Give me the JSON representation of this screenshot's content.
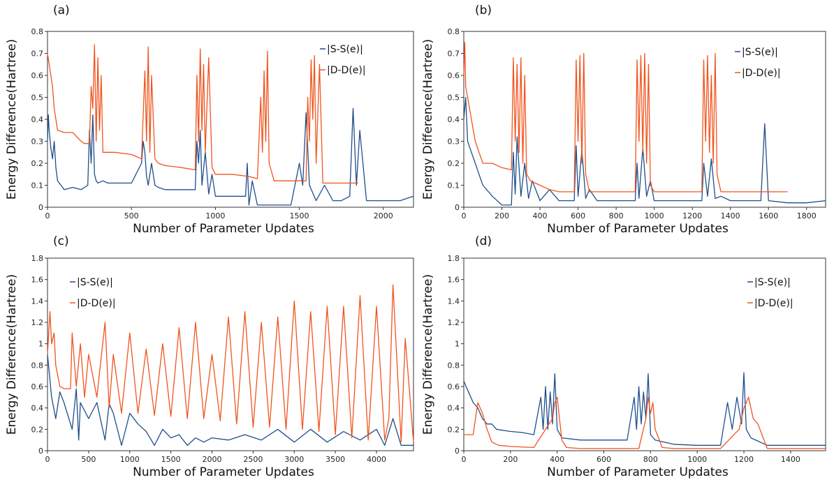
{
  "colors": {
    "s": "#1f4e8c",
    "d": "#f0541e"
  },
  "chart_data": [
    {
      "panel": "(a)",
      "type": "line",
      "xlabel": "Number of Parameter Updates",
      "ylabel": "Energy Difference(Hartree)",
      "xlim": [
        0,
        2180
      ],
      "ylim": [
        0,
        0.8
      ],
      "xticks": [
        0,
        500,
        1000,
        1500,
        2000
      ],
      "xtick_labels": [
        "0",
        "500",
        "1000",
        "1500",
        "2000"
      ],
      "yticks": [
        0,
        0.1,
        0.2,
        0.3,
        0.4,
        0.5,
        0.6,
        0.7,
        0.8
      ],
      "ytick_labels": [
        "0",
        "0.1",
        "0.2",
        "0.3",
        "0.4",
        "0.5",
        "0.6",
        "0.7",
        "0.8"
      ],
      "legend": "top-right",
      "series": [
        {
          "name": "|S-S(e)|",
          "color": "s",
          "x": [
            0,
            5,
            10,
            20,
            30,
            40,
            50,
            60,
            80,
            100,
            150,
            200,
            240,
            250,
            260,
            270,
            280,
            290,
            300,
            330,
            360,
            400,
            500,
            560,
            570,
            580,
            590,
            600,
            620,
            640,
            660,
            700,
            800,
            880,
            890,
            900,
            910,
            920,
            940,
            960,
            980,
            1000,
            1100,
            1180,
            1190,
            1200,
            1220,
            1250,
            1300,
            1400,
            1450,
            1500,
            1520,
            1540,
            1560,
            1600,
            1650,
            1700,
            1750,
            1800,
            1820,
            1840,
            1860,
            1900,
            2000,
            2100,
            2180
          ],
          "y": [
            0.3,
            0.42,
            0.35,
            0.27,
            0.22,
            0.3,
            0.18,
            0.12,
            0.1,
            0.08,
            0.09,
            0.08,
            0.1,
            0.35,
            0.2,
            0.42,
            0.15,
            0.12,
            0.11,
            0.12,
            0.11,
            0.11,
            0.11,
            0.2,
            0.3,
            0.25,
            0.14,
            0.1,
            0.2,
            0.1,
            0.09,
            0.08,
            0.08,
            0.08,
            0.3,
            0.2,
            0.35,
            0.1,
            0.25,
            0.06,
            0.15,
            0.05,
            0.05,
            0.05,
            0.2,
            0.01,
            0.12,
            0.01,
            0.01,
            0.01,
            0.01,
            0.2,
            0.1,
            0.43,
            0.1,
            0.03,
            0.1,
            0.03,
            0.03,
            0.05,
            0.45,
            0.1,
            0.35,
            0.03,
            0.03,
            0.03,
            0.05
          ]
        },
        {
          "name": "|D-D(e)|",
          "color": "d",
          "x": [
            0,
            10,
            20,
            30,
            40,
            60,
            100,
            150,
            200,
            220,
            250,
            260,
            270,
            280,
            290,
            300,
            310,
            320,
            330,
            350,
            400,
            500,
            560,
            580,
            590,
            600,
            610,
            620,
            640,
            660,
            700,
            800,
            880,
            890,
            900,
            910,
            920,
            930,
            940,
            960,
            980,
            1000,
            1100,
            1200,
            1250,
            1270,
            1280,
            1290,
            1300,
            1310,
            1320,
            1350,
            1400,
            1500,
            1540,
            1550,
            1560,
            1570,
            1580,
            1590,
            1600,
            1620,
            1640,
            1700,
            1800,
            1850
          ],
          "y": [
            0.7,
            0.65,
            0.6,
            0.55,
            0.45,
            0.35,
            0.34,
            0.34,
            0.3,
            0.29,
            0.29,
            0.55,
            0.45,
            0.74,
            0.3,
            0.68,
            0.35,
            0.6,
            0.25,
            0.25,
            0.25,
            0.24,
            0.22,
            0.62,
            0.3,
            0.73,
            0.25,
            0.6,
            0.22,
            0.2,
            0.19,
            0.18,
            0.17,
            0.6,
            0.3,
            0.72,
            0.35,
            0.65,
            0.25,
            0.68,
            0.18,
            0.15,
            0.15,
            0.14,
            0.13,
            0.5,
            0.25,
            0.62,
            0.3,
            0.71,
            0.2,
            0.12,
            0.12,
            0.12,
            0.12,
            0.5,
            0.3,
            0.67,
            0.4,
            0.69,
            0.2,
            0.65,
            0.11,
            0.11,
            0.11,
            0.11
          ]
        }
      ]
    },
    {
      "panel": "(b)",
      "type": "line",
      "xlabel": "Number of Parameter Updates",
      "ylabel": "Energy Difference(Hartree)",
      "xlim": [
        0,
        1900
      ],
      "ylim": [
        0,
        0.8
      ],
      "xticks": [
        0,
        200,
        400,
        600,
        800,
        1000,
        1200,
        1400,
        1600,
        1800
      ],
      "xtick_labels": [
        "0",
        "200",
        "400",
        "600",
        "800",
        "1000",
        "1200",
        "1400",
        "1600",
        "1800"
      ],
      "yticks": [
        0,
        0.1,
        0.2,
        0.3,
        0.4,
        0.5,
        0.6,
        0.7,
        0.8
      ],
      "ytick_labels": [
        "0",
        "0.1",
        "0.2",
        "0.3",
        "0.4",
        "0.5",
        "0.6",
        "0.7",
        "0.8"
      ],
      "legend": "top-right",
      "series": [
        {
          "name": "|S-S(e)|",
          "color": "s",
          "x": [
            0,
            10,
            20,
            40,
            60,
            80,
            100,
            150,
            200,
            250,
            260,
            270,
            280,
            300,
            320,
            340,
            360,
            400,
            450,
            500,
            580,
            590,
            600,
            620,
            640,
            660,
            700,
            800,
            900,
            910,
            920,
            940,
            960,
            980,
            1000,
            1100,
            1200,
            1250,
            1260,
            1280,
            1300,
            1320,
            1350,
            1400,
            1500,
            1560,
            1580,
            1600,
            1700,
            1800,
            1900
          ],
          "y": [
            0.4,
            0.5,
            0.3,
            0.25,
            0.2,
            0.15,
            0.1,
            0.05,
            0.01,
            0.01,
            0.25,
            0.06,
            0.32,
            0.05,
            0.2,
            0.04,
            0.12,
            0.03,
            0.08,
            0.03,
            0.03,
            0.28,
            0.05,
            0.26,
            0.04,
            0.08,
            0.03,
            0.03,
            0.03,
            0.2,
            0.04,
            0.27,
            0.05,
            0.12,
            0.03,
            0.03,
            0.03,
            0.03,
            0.2,
            0.05,
            0.22,
            0.04,
            0.05,
            0.03,
            0.03,
            0.03,
            0.38,
            0.03,
            0.02,
            0.02,
            0.03
          ]
        },
        {
          "name": "|D-D(e)|",
          "color": "d",
          "x": [
            0,
            5,
            10,
            20,
            40,
            60,
            80,
            100,
            150,
            200,
            250,
            260,
            270,
            280,
            290,
            300,
            310,
            320,
            330,
            350,
            400,
            450,
            500,
            580,
            590,
            600,
            610,
            620,
            630,
            640,
            660,
            700,
            800,
            900,
            910,
            920,
            930,
            940,
            950,
            960,
            970,
            980,
            1000,
            1100,
            1200,
            1250,
            1260,
            1270,
            1280,
            1290,
            1300,
            1310,
            1320,
            1330,
            1350,
            1400,
            1500,
            1600,
            1700
          ],
          "y": [
            0.6,
            0.75,
            0.55,
            0.5,
            0.4,
            0.3,
            0.25,
            0.2,
            0.2,
            0.18,
            0.17,
            0.68,
            0.3,
            0.65,
            0.25,
            0.68,
            0.2,
            0.6,
            0.15,
            0.12,
            0.1,
            0.08,
            0.07,
            0.07,
            0.67,
            0.3,
            0.69,
            0.2,
            0.7,
            0.15,
            0.07,
            0.07,
            0.07,
            0.07,
            0.67,
            0.3,
            0.69,
            0.25,
            0.7,
            0.2,
            0.65,
            0.1,
            0.07,
            0.07,
            0.07,
            0.07,
            0.67,
            0.3,
            0.69,
            0.25,
            0.6,
            0.2,
            0.7,
            0.15,
            0.07,
            0.07,
            0.07,
            0.07,
            0.07
          ]
        }
      ]
    },
    {
      "panel": "(c)",
      "type": "line",
      "xlabel": "Number of Parameter Updates",
      "ylabel": "Energy Difference(Hartree)",
      "xlim": [
        0,
        4450
      ],
      "ylim": [
        0,
        1.8
      ],
      "xticks": [
        0,
        500,
        1000,
        1500,
        2000,
        2500,
        3000,
        3500,
        4000
      ],
      "xtick_labels": [
        "0",
        "500",
        "1000",
        "1500",
        "2000",
        "2500",
        "3000",
        "3500",
        "4000"
      ],
      "yticks": [
        0,
        0.2,
        0.4,
        0.6,
        0.8,
        1,
        1.2,
        1.4,
        1.6,
        1.8
      ],
      "ytick_labels": [
        "0",
        "0.2",
        "0.4",
        "0.6",
        "0.8",
        "1",
        "1.2",
        "1.4",
        "1.6",
        "1.8"
      ],
      "legend": "top-left",
      "series": [
        {
          "name": "|S-S(e)|",
          "color": "s",
          "x": [
            0,
            50,
            100,
            150,
            200,
            300,
            350,
            380,
            400,
            500,
            600,
            700,
            750,
            800,
            900,
            1000,
            1100,
            1200,
            1300,
            1400,
            1500,
            1600,
            1700,
            1800,
            1900,
            2000,
            2200,
            2400,
            2600,
            2800,
            3000,
            3200,
            3400,
            3600,
            3800,
            4000,
            4100,
            4200,
            4300,
            4450
          ],
          "y": [
            0.9,
            0.5,
            0.3,
            0.55,
            0.45,
            0.2,
            0.58,
            0.1,
            0.45,
            0.3,
            0.45,
            0.1,
            0.44,
            0.35,
            0.05,
            0.35,
            0.25,
            0.18,
            0.05,
            0.2,
            0.12,
            0.15,
            0.05,
            0.12,
            0.08,
            0.12,
            0.1,
            0.15,
            0.1,
            0.2,
            0.08,
            0.2,
            0.08,
            0.18,
            0.1,
            0.2,
            0.05,
            0.3,
            0.05,
            0.05
          ]
        },
        {
          "name": "|D-D(e)|",
          "color": "d",
          "x": [
            0,
            30,
            50,
            80,
            100,
            150,
            200,
            280,
            300,
            350,
            400,
            450,
            500,
            600,
            700,
            750,
            800,
            900,
            1000,
            1100,
            1200,
            1300,
            1400,
            1500,
            1600,
            1700,
            1800,
            1900,
            2000,
            2100,
            2200,
            2300,
            2400,
            2500,
            2600,
            2700,
            2800,
            2900,
            3000,
            3100,
            3200,
            3300,
            3400,
            3500,
            3600,
            3700,
            3800,
            3900,
            4000,
            4100,
            4150,
            4200,
            4300,
            4350,
            4450
          ],
          "y": [
            0.9,
            1.3,
            1.0,
            1.1,
            0.8,
            0.6,
            0.58,
            0.58,
            1.1,
            0.6,
            1.0,
            0.5,
            0.9,
            0.5,
            1.2,
            0.4,
            0.9,
            0.35,
            1.1,
            0.35,
            0.95,
            0.33,
            1.0,
            0.32,
            1.15,
            0.3,
            1.2,
            0.3,
            0.9,
            0.28,
            1.25,
            0.25,
            1.3,
            0.22,
            1.2,
            0.22,
            1.25,
            0.2,
            1.4,
            0.2,
            1.3,
            0.18,
            1.35,
            0.15,
            1.35,
            0.12,
            1.45,
            0.1,
            1.35,
            0.1,
            0.3,
            1.55,
            0.08,
            1.05,
            0.08
          ]
        }
      ]
    },
    {
      "panel": "(d)",
      "type": "line",
      "xlabel": "Number of Parameter Updates",
      "ylabel": "Energy Difference(Hartree)",
      "xlim": [
        0,
        1550
      ],
      "ylim": [
        0,
        1.8
      ],
      "xticks": [
        0,
        200,
        400,
        600,
        800,
        1000,
        1200,
        1400
      ],
      "xtick_labels": [
        "0",
        "200",
        "400",
        "600",
        "800",
        "1000",
        "1200",
        "1400"
      ],
      "yticks": [
        0,
        0.2,
        0.4,
        0.6,
        0.8,
        1,
        1.2,
        1.4,
        1.6,
        1.8
      ],
      "ytick_labels": [
        "0",
        "0.2",
        "0.4",
        "0.6",
        "0.8",
        "1",
        "1.2",
        "1.4",
        "1.6",
        "1.8"
      ],
      "legend": "top-right",
      "series": [
        {
          "name": "|S-S(e)|",
          "color": "s",
          "x": [
            0,
            10,
            20,
            40,
            60,
            80,
            100,
            120,
            140,
            200,
            250,
            300,
            330,
            340,
            350,
            360,
            370,
            380,
            390,
            400,
            420,
            500,
            600,
            700,
            730,
            740,
            750,
            760,
            770,
            780,
            790,
            800,
            820,
            900,
            1000,
            1100,
            1130,
            1150,
            1170,
            1190,
            1200,
            1210,
            1230,
            1300,
            1400,
            1500,
            1550
          ],
          "y": [
            0.65,
            0.6,
            0.55,
            0.45,
            0.4,
            0.3,
            0.25,
            0.25,
            0.2,
            0.18,
            0.17,
            0.15,
            0.5,
            0.2,
            0.6,
            0.2,
            0.55,
            0.25,
            0.72,
            0.2,
            0.12,
            0.1,
            0.1,
            0.1,
            0.5,
            0.2,
            0.6,
            0.25,
            0.55,
            0.3,
            0.72,
            0.15,
            0.1,
            0.06,
            0.05,
            0.05,
            0.45,
            0.2,
            0.5,
            0.25,
            0.73,
            0.2,
            0.12,
            0.05,
            0.05,
            0.05,
            0.05
          ]
        },
        {
          "name": "|D-D(e)|",
          "color": "d",
          "x": [
            0,
            40,
            60,
            80,
            100,
            120,
            150,
            200,
            300,
            380,
            390,
            400,
            410,
            420,
            440,
            500,
            600,
            750,
            780,
            790,
            800,
            810,
            820,
            850,
            900,
            1000,
            1100,
            1180,
            1200,
            1220,
            1240,
            1260,
            1300,
            1400,
            1550
          ],
          "y": [
            0.15,
            0.15,
            0.45,
            0.35,
            0.2,
            0.08,
            0.05,
            0.04,
            0.03,
            0.3,
            0.45,
            0.5,
            0.3,
            0.1,
            0.03,
            0.02,
            0.02,
            0.02,
            0.3,
            0.5,
            0.35,
            0.45,
            0.2,
            0.03,
            0.02,
            0.02,
            0.02,
            0.2,
            0.4,
            0.5,
            0.3,
            0.25,
            0.02,
            0.02,
            0.02
          ]
        }
      ]
    }
  ]
}
